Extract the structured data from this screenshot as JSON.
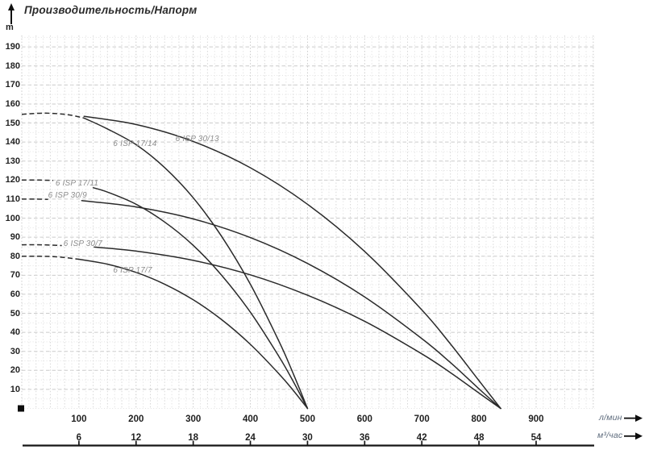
{
  "title": "Производительность/Напорм",
  "y_axis_unit": "m",
  "x_axis_primary_unit": "л/мин",
  "x_axis_secondary_unit": "м³/час",
  "chart_data": {
    "type": "line",
    "title": "Производительность/Напорм",
    "ylabel": "m",
    "xlabel_primary": "л/мин",
    "xlabel_secondary": "м³/час",
    "grid": "dotted-dashed",
    "legend_position": "labels-on-curves",
    "y_range_m": [
      0,
      196
    ],
    "x_range_l_min": [
      0,
      1003
    ],
    "y_ticks_m": [
      10,
      20,
      30,
      40,
      50,
      60,
      70,
      80,
      90,
      100,
      110,
      120,
      130,
      140,
      150,
      160,
      170,
      180,
      190
    ],
    "x_ticks_l_min": [
      100,
      200,
      300,
      400,
      500,
      600,
      700,
      800,
      900
    ],
    "x_ticks_m3_h": [
      6,
      12,
      18,
      24,
      30,
      36,
      42,
      48,
      54
    ],
    "series": [
      {
        "name": "6 ISP 17/14",
        "label_at_l_min_m": [
          160,
          136.8
        ],
        "dashed_points_l_min_m": [
          [
            0,
            154.6
          ],
          [
            40,
            155.2
          ],
          [
            80,
            154.4
          ],
          [
            109,
            152.6
          ]
        ],
        "points_l_min_m": [
          [
            109,
            152.6
          ],
          [
            150,
            146.9
          ],
          [
            200,
            138.6
          ],
          [
            250,
            126.6
          ],
          [
            300,
            110.7
          ],
          [
            350,
            90.3
          ],
          [
            400,
            65.3
          ],
          [
            450,
            35.3
          ],
          [
            475,
            18.3
          ],
          [
            500,
            0
          ]
        ]
      },
      {
        "name": "6 ISP 30/13",
        "label_at_l_min_m": [
          269,
          139.4
        ],
        "dashed_points_l_min_m": [],
        "points_l_min_m": [
          [
            109,
            153.5
          ],
          [
            200,
            149.2
          ],
          [
            300,
            140.3
          ],
          [
            400,
            126.5
          ],
          [
            500,
            107.3
          ],
          [
            600,
            82.5
          ],
          [
            700,
            51.8
          ],
          [
            750,
            33.9
          ],
          [
            800,
            14.6
          ],
          [
            838,
            0
          ]
        ]
      },
      {
        "name": "6 ISP 17/11",
        "label_at_l_min_m": [
          59,
          116.2
        ],
        "dashed_points_l_min_m": [
          [
            0,
            120
          ],
          [
            30,
            120
          ],
          [
            55,
            119.8
          ]
        ],
        "points_l_min_m": [
          [
            125,
            116
          ],
          [
            150,
            113.7
          ],
          [
            200,
            107.3
          ],
          [
            250,
            98
          ],
          [
            300,
            85.7
          ],
          [
            350,
            69.9
          ],
          [
            400,
            50.6
          ],
          [
            450,
            27.3
          ],
          [
            475,
            14.2
          ],
          [
            500,
            0
          ]
        ]
      },
      {
        "name": "6 ISP 30/9",
        "label_at_l_min_m": [
          46,
          109.6
        ],
        "dashed_points_l_min_m": [
          [
            0,
            110
          ],
          [
            25,
            110
          ],
          [
            46,
            109.9
          ]
        ],
        "points_l_min_m": [
          [
            105,
            109.2
          ],
          [
            200,
            105.9
          ],
          [
            300,
            99.6
          ],
          [
            400,
            89.8
          ],
          [
            500,
            76.2
          ],
          [
            600,
            58.6
          ],
          [
            700,
            36.7
          ],
          [
            750,
            24.1
          ],
          [
            800,
            10.3
          ],
          [
            838,
            0
          ]
        ]
      },
      {
        "name": "6 ISP 30/7",
        "label_at_l_min_m": [
          73,
          84.5
        ],
        "dashed_points_l_min_m": [
          [
            0,
            86
          ],
          [
            35,
            86
          ],
          [
            70,
            85.6
          ]
        ],
        "points_l_min_m": [
          [
            127,
            84.8
          ],
          [
            200,
            82.7
          ],
          [
            300,
            77.8
          ],
          [
            400,
            70.2
          ],
          [
            500,
            59.5
          ],
          [
            600,
            45.8
          ],
          [
            700,
            28.7
          ],
          [
            750,
            18.8
          ],
          [
            800,
            8.1
          ],
          [
            838,
            0
          ]
        ]
      },
      {
        "name": "6 ISP 17/7",
        "label_at_l_min_m": [
          160,
          70.3
        ],
        "dashed_points_l_min_m": [
          [
            0,
            80
          ],
          [
            55,
            79.8
          ],
          [
            100,
            78.4
          ]
        ],
        "points_l_min_m": [
          [
            100,
            78.4
          ],
          [
            150,
            75.8
          ],
          [
            200,
            71.5
          ],
          [
            250,
            65.3
          ],
          [
            300,
            57.1
          ],
          [
            350,
            46.6
          ],
          [
            400,
            33.7
          ],
          [
            450,
            18.2
          ],
          [
            475,
            9.5
          ],
          [
            500,
            0
          ]
        ]
      }
    ]
  }
}
